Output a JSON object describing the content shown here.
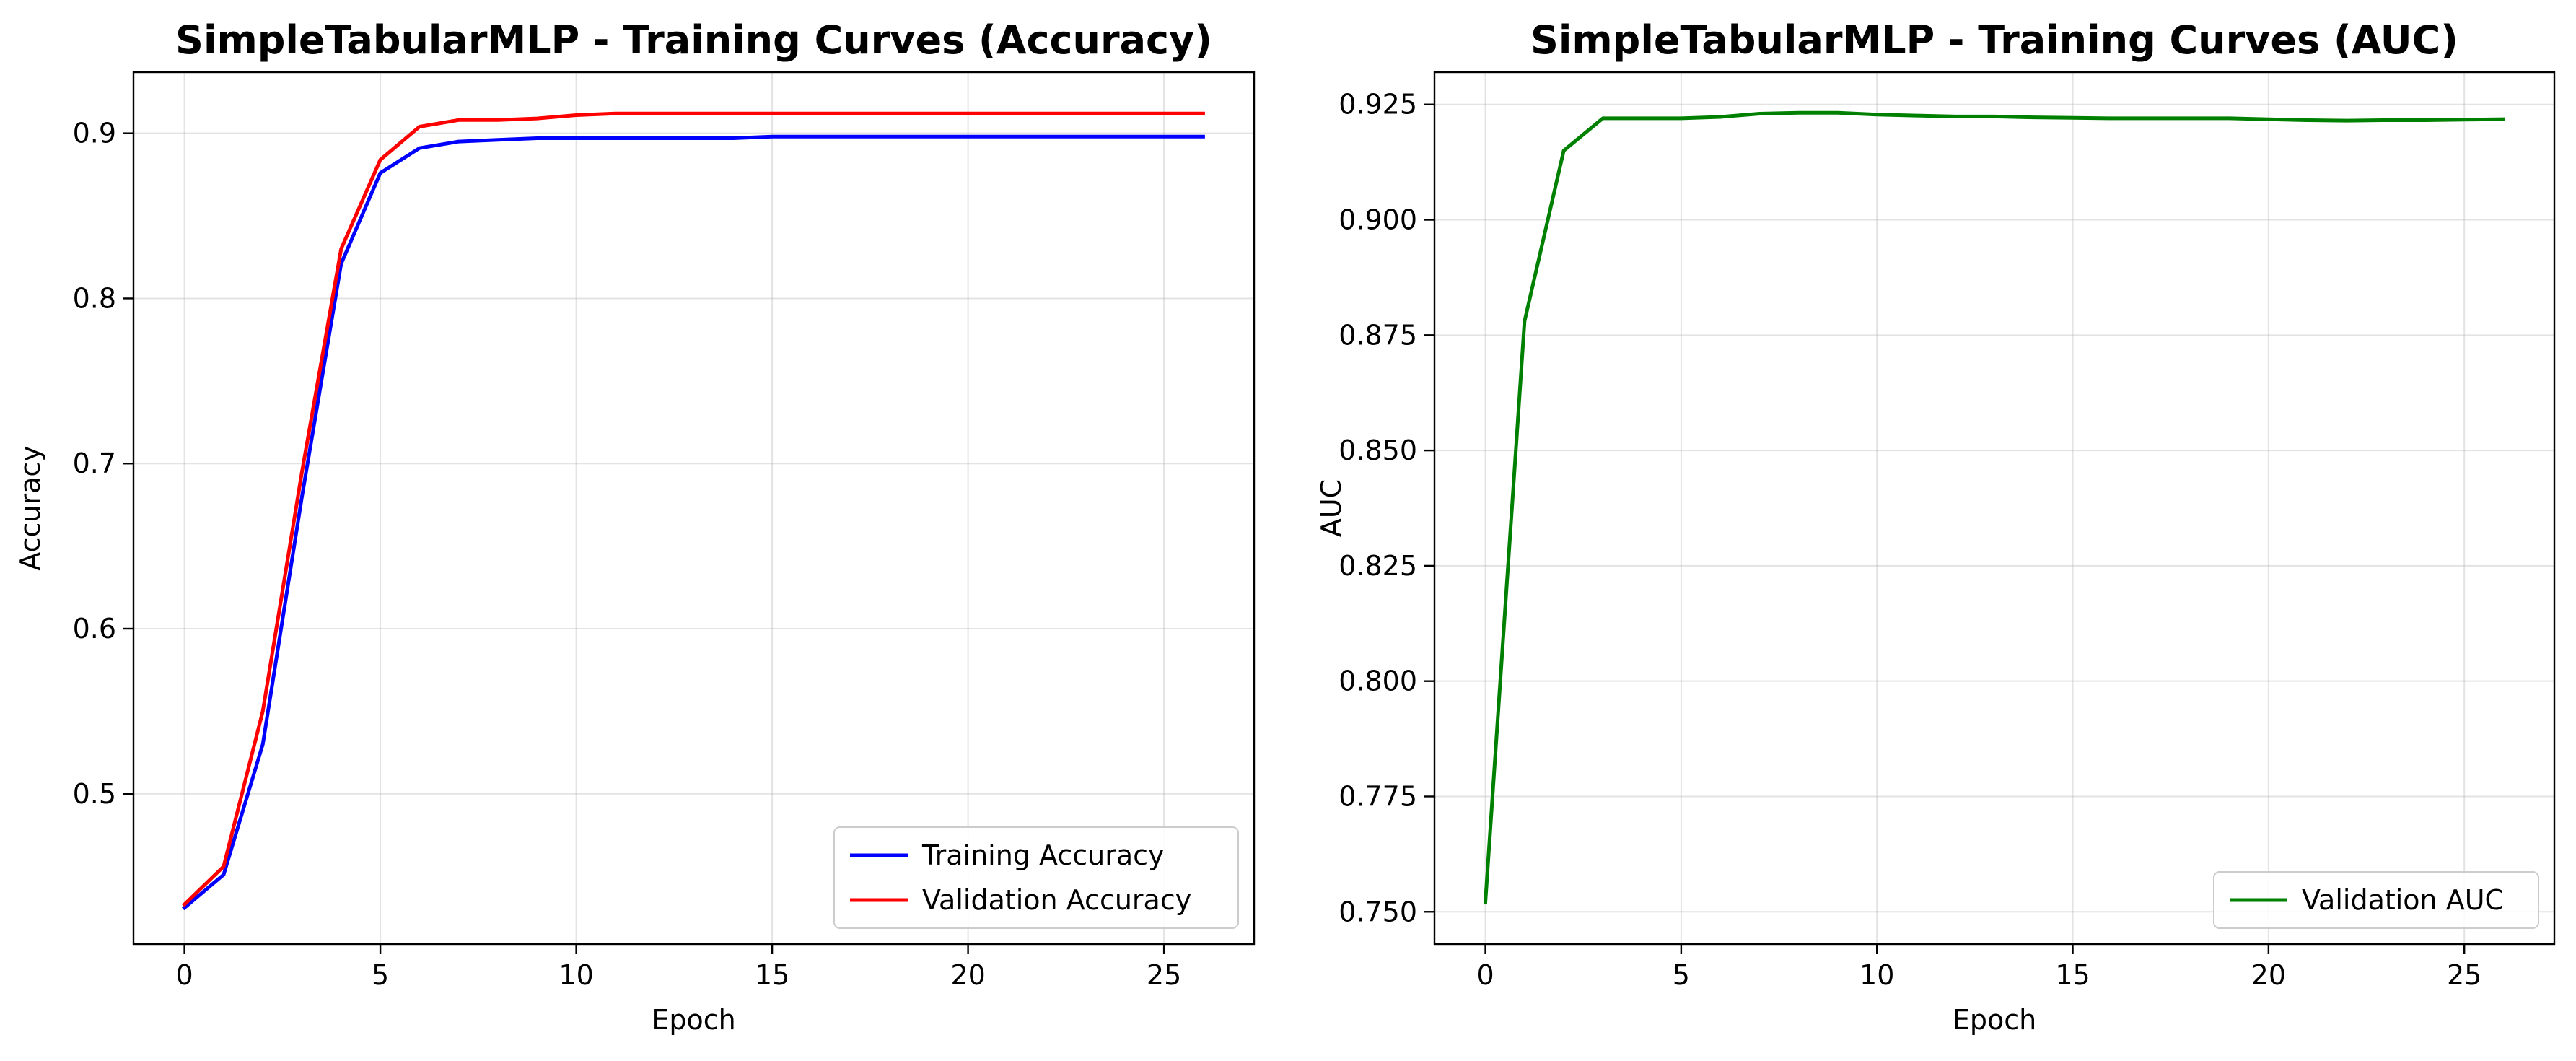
{
  "chart_data": [
    {
      "type": "line",
      "title": "SimpleTabularMLP - Training Curves (Accuracy)",
      "xlabel": "Epoch",
      "ylabel": "Accuracy",
      "xlim": [
        -1.3,
        27.3
      ],
      "ylim": [
        0.409,
        0.937
      ],
      "xticks": [
        0,
        5,
        10,
        15,
        20,
        25
      ],
      "yticks": [
        0.5,
        0.6,
        0.7,
        0.8,
        0.9
      ],
      "ytick_labels": [
        "0.5",
        "0.6",
        "0.7",
        "0.8",
        "0.9"
      ],
      "grid": true,
      "legend_position": "lower right",
      "x": [
        0,
        1,
        2,
        3,
        4,
        5,
        6,
        7,
        8,
        9,
        10,
        11,
        12,
        13,
        14,
        15,
        16,
        17,
        18,
        19,
        20,
        21,
        22,
        23,
        24,
        25,
        26
      ],
      "series": [
        {
          "name": "Training Accuracy",
          "color": "#0000ff",
          "values": [
            0.431,
            0.451,
            0.53,
            0.68,
            0.821,
            0.876,
            0.891,
            0.895,
            0.896,
            0.897,
            0.897,
            0.897,
            0.897,
            0.897,
            0.897,
            0.898,
            0.898,
            0.898,
            0.898,
            0.898,
            0.898,
            0.898,
            0.898,
            0.898,
            0.898,
            0.898,
            0.898
          ]
        },
        {
          "name": "Validation Accuracy",
          "color": "#ff0000",
          "values": [
            0.433,
            0.456,
            0.55,
            0.695,
            0.83,
            0.884,
            0.904,
            0.908,
            0.908,
            0.909,
            0.911,
            0.912,
            0.912,
            0.912,
            0.912,
            0.912,
            0.912,
            0.912,
            0.912,
            0.912,
            0.912,
            0.912,
            0.912,
            0.912,
            0.912,
            0.912,
            0.912
          ]
        }
      ]
    },
    {
      "type": "line",
      "title": "SimpleTabularMLP - Training Curves (AUC)",
      "xlabel": "Epoch",
      "ylabel": "AUC",
      "xlim": [
        -1.3,
        27.3
      ],
      "ylim": [
        0.743,
        0.932
      ],
      "xticks": [
        0,
        5,
        10,
        15,
        20,
        25
      ],
      "yticks": [
        0.75,
        0.775,
        0.8,
        0.825,
        0.85,
        0.875,
        0.9,
        0.925
      ],
      "ytick_labels": [
        "0.750",
        "0.775",
        "0.800",
        "0.825",
        "0.850",
        "0.875",
        "0.900",
        "0.925"
      ],
      "grid": true,
      "legend_position": "lower right",
      "x": [
        0,
        1,
        2,
        3,
        4,
        5,
        6,
        7,
        8,
        9,
        10,
        11,
        12,
        13,
        14,
        15,
        16,
        17,
        18,
        19,
        20,
        21,
        22,
        23,
        24,
        25,
        26
      ],
      "series": [
        {
          "name": "Validation AUC",
          "color": "#008000",
          "values": [
            0.752,
            0.878,
            0.915,
            0.922,
            0.922,
            0.922,
            0.9223,
            0.923,
            0.9232,
            0.9232,
            0.9228,
            0.9226,
            0.9224,
            0.9224,
            0.9222,
            0.9221,
            0.922,
            0.922,
            0.922,
            0.922,
            0.9218,
            0.9216,
            0.9215,
            0.9216,
            0.9216,
            0.9217,
            0.9218
          ]
        }
      ]
    }
  ]
}
